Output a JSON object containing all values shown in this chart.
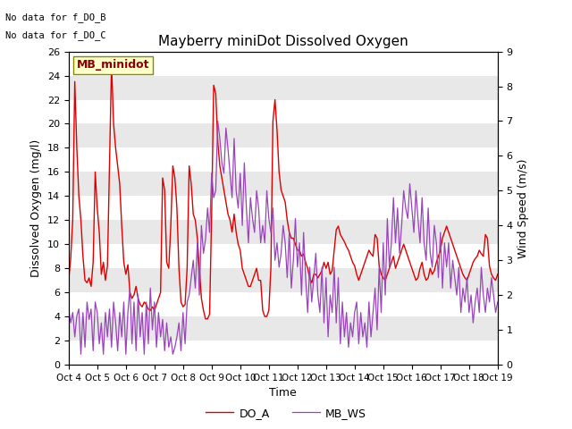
{
  "title": "Mayberry miniDot Dissolved Oxygen",
  "ylabel_left": "Dissolved Oxygen (mg/l)",
  "ylabel_right": "Wind Speed (m/s)",
  "xlabel": "Time",
  "annotation1": "No data for f_DO_B",
  "annotation2": "No data for f_DO_C",
  "legend_box_text": "MB_minidot",
  "ylim_left": [
    0,
    26
  ],
  "ylim_right": [
    0.0,
    9.0
  ],
  "yticks_left": [
    0,
    2,
    4,
    6,
    8,
    10,
    12,
    14,
    16,
    18,
    20,
    22,
    24,
    26
  ],
  "yticks_right": [
    0.0,
    1.0,
    2.0,
    3.0,
    4.0,
    5.0,
    6.0,
    7.0,
    8.0,
    9.0
  ],
  "xtick_labels": [
    "Oct 4",
    "Oct 5",
    "Oct 6",
    "Oct 7",
    "Oct 8",
    "Oct 9",
    "Oct 10",
    "Oct 11",
    "Oct 12",
    "Oct 13",
    "Oct 14",
    "Oct 15",
    "Oct 16",
    "Oct 17",
    "Oct 18",
    "Oct 19"
  ],
  "do_color": "#dd0000",
  "ws_color": "#9944bb",
  "fig_facecolor": "#ffffff",
  "plot_facecolor": "#e8e8e8",
  "legend_box_facecolor": "#ffffcc",
  "legend_box_edgecolor": "#888800",
  "legend_box_text_color": "#880000",
  "do_values": [
    7.0,
    8.8,
    12.0,
    23.5,
    18.0,
    14.0,
    12.0,
    9.0,
    7.0,
    6.8,
    7.2,
    6.5,
    8.5,
    16.0,
    13.0,
    11.0,
    7.5,
    8.5,
    7.0,
    8.2,
    16.5,
    25.0,
    20.0,
    18.0,
    16.5,
    15.0,
    11.5,
    8.5,
    7.5,
    8.3,
    6.0,
    5.5,
    5.8,
    6.5,
    5.5,
    5.0,
    4.8,
    5.2,
    5.0,
    4.6,
    4.5,
    4.8,
    4.5,
    5.0,
    5.5,
    6.0,
    15.5,
    14.5,
    8.5,
    8.0,
    11.5,
    16.5,
    15.5,
    13.0,
    8.0,
    5.2,
    4.8,
    5.0,
    8.0,
    16.5,
    15.0,
    12.5,
    12.0,
    10.5,
    8.0,
    5.5,
    4.5,
    3.8,
    3.8,
    4.2,
    12.5,
    23.2,
    22.5,
    18.5,
    16.5,
    15.5,
    14.5,
    13.5,
    12.5,
    12.0,
    11.0,
    12.5,
    11.0,
    10.0,
    9.5,
    8.0,
    7.5,
    7.0,
    6.5,
    6.5,
    7.0,
    7.5,
    8.0,
    7.0,
    7.0,
    4.5,
    4.0,
    4.0,
    4.5,
    8.0,
    20.2,
    22.0,
    19.5,
    16.0,
    14.5,
    14.0,
    13.5,
    12.0,
    11.0,
    10.5,
    10.5,
    10.0,
    9.5,
    9.5,
    9.0,
    9.2,
    8.5,
    8.0,
    7.2,
    6.8,
    7.5,
    7.5,
    7.2,
    7.5,
    7.8,
    8.5,
    8.0,
    8.5,
    7.5,
    7.8,
    9.5,
    11.2,
    11.5,
    10.8,
    10.5,
    10.2,
    9.8,
    9.5,
    9.0,
    8.5,
    8.2,
    7.5,
    7.0,
    7.5,
    8.0,
    8.5,
    9.0,
    9.5,
    9.2,
    9.0,
    10.8,
    10.5,
    8.2,
    7.5,
    7.2,
    7.0,
    7.5,
    8.0,
    8.5,
    9.0,
    8.0,
    8.5,
    9.0,
    9.5,
    10.0,
    9.5,
    9.0,
    8.5,
    8.0,
    7.5,
    7.0,
    7.2,
    8.0,
    8.5,
    7.5,
    7.0,
    7.2,
    8.0,
    7.5,
    7.8,
    8.5,
    9.0,
    9.5,
    10.5,
    11.0,
    11.5,
    11.0,
    10.5,
    10.0,
    9.5,
    9.0,
    8.5,
    8.0,
    7.5,
    7.2,
    7.0,
    7.5,
    8.0,
    8.5,
    8.8,
    9.0,
    9.5,
    9.2,
    9.0,
    10.8,
    10.5,
    8.2,
    7.5,
    7.2,
    7.0,
    7.5
  ],
  "ws_values": [
    1.6,
    1.2,
    1.5,
    0.8,
    1.4,
    1.6,
    0.3,
    1.5,
    0.5,
    1.8,
    1.3,
    1.6,
    0.4,
    1.8,
    1.5,
    0.6,
    1.2,
    0.3,
    1.5,
    0.8,
    1.6,
    0.5,
    1.8,
    1.2,
    0.4,
    1.5,
    0.8,
    1.8,
    0.3,
    1.5,
    2.2,
    0.6,
    1.8,
    0.4,
    2.0,
    0.8,
    1.5,
    0.3,
    1.8,
    0.6,
    2.2,
    1.0,
    1.8,
    0.5,
    1.5,
    0.8,
    1.3,
    0.4,
    1.2,
    0.5,
    0.8,
    0.3,
    0.5,
    0.8,
    1.2,
    0.4,
    1.5,
    0.6,
    1.8,
    2.0,
    2.5,
    3.0,
    2.2,
    3.5,
    2.0,
    4.0,
    3.2,
    3.6,
    4.5,
    3.8,
    5.5,
    4.8,
    5.0,
    7.0,
    6.5,
    5.8,
    5.5,
    6.8,
    6.2,
    5.5,
    4.8,
    6.5,
    5.0,
    4.5,
    5.5,
    4.0,
    5.8,
    4.5,
    3.5,
    4.8,
    4.2,
    3.8,
    5.0,
    4.5,
    3.5,
    4.0,
    3.5,
    5.0,
    4.2,
    3.8,
    4.5,
    3.0,
    3.5,
    2.8,
    3.2,
    4.0,
    3.5,
    2.5,
    3.8,
    2.2,
    3.0,
    4.2,
    2.8,
    3.5,
    2.0,
    3.8,
    2.5,
    1.5,
    2.8,
    1.8,
    2.5,
    3.2,
    2.0,
    1.5,
    2.8,
    1.2,
    2.5,
    0.8,
    2.0,
    1.5,
    2.8,
    1.2,
    2.5,
    0.6,
    1.8,
    0.8,
    1.5,
    0.5,
    1.2,
    0.8,
    1.5,
    1.8,
    0.6,
    1.5,
    0.8,
    1.2,
    0.5,
    1.8,
    0.8,
    1.5,
    2.2,
    1.0,
    2.8,
    1.5,
    3.5,
    2.0,
    4.2,
    2.8,
    3.5,
    4.8,
    3.5,
    4.5,
    3.2,
    4.0,
    5.0,
    4.5,
    4.2,
    5.2,
    4.5,
    3.8,
    5.0,
    4.2,
    3.5,
    4.8,
    3.5,
    3.0,
    4.5,
    3.2,
    2.8,
    4.0,
    3.5,
    2.5,
    3.8,
    2.2,
    3.5,
    2.8,
    3.5,
    2.2,
    3.0,
    2.5,
    2.0,
    2.8,
    1.5,
    2.2,
    1.8,
    2.5,
    1.5,
    2.0,
    1.2,
    1.8,
    2.2,
    1.5,
    2.8,
    2.0,
    1.5,
    2.2,
    1.8,
    2.5,
    2.0,
    1.5,
    1.8
  ],
  "figsize": [
    6.4,
    4.8
  ],
  "dpi": 100
}
